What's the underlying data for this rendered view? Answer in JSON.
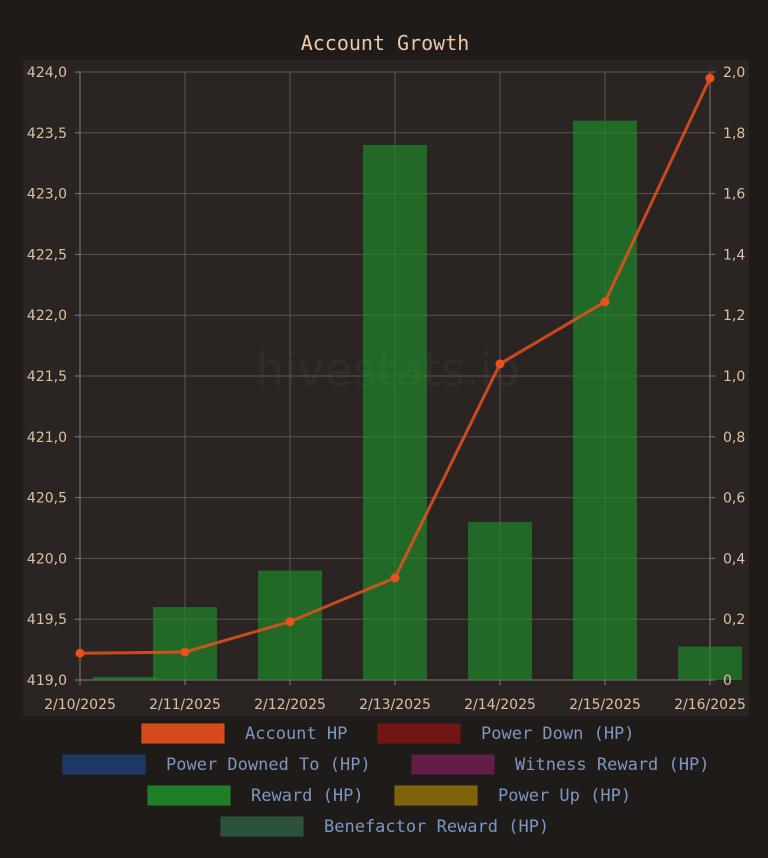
{
  "chart_data": {
    "type": "bar+line",
    "title": "Account Growth",
    "watermark": "hivestats.io",
    "categories": [
      "2/10/2025",
      "2/11/2025",
      "2/12/2025",
      "2/13/2025",
      "2/14/2025",
      "2/15/2025",
      "2/16/2025"
    ],
    "y_left": {
      "min": 419.0,
      "max": 424.0,
      "ticks": [
        "419,0",
        "419,5",
        "420,0",
        "420,5",
        "421,0",
        "421,5",
        "422,0",
        "422,5",
        "423,0",
        "423,5",
        "424,0"
      ]
    },
    "y_right": {
      "min": 0,
      "max": 2.0,
      "ticks": [
        "0",
        "0,2",
        "0,4",
        "0,6",
        "0,8",
        "1,0",
        "1,2",
        "1,4",
        "1,6",
        "1,8",
        "2,0"
      ]
    },
    "grid": true,
    "series": [
      {
        "name": "Account HP",
        "type": "line",
        "axis": "left",
        "color": "#e8501e",
        "values": [
          419.22,
          419.23,
          419.48,
          419.84,
          421.6,
          422.11,
          423.95
        ]
      },
      {
        "name": "Power Down (HP)",
        "type": "bar",
        "axis": "right",
        "color": "#7a1515",
        "values": [
          0,
          0,
          0,
          0,
          0,
          0,
          0
        ]
      },
      {
        "name": "Power Downed To (HP)",
        "type": "bar",
        "axis": "right",
        "color": "#1e3c6e",
        "values": [
          0,
          0,
          0,
          0,
          0,
          0,
          0
        ]
      },
      {
        "name": "Witness Reward (HP)",
        "type": "bar",
        "axis": "right",
        "color": "#6a1e4e",
        "values": [
          0,
          0,
          0,
          0,
          0,
          0,
          0
        ]
      },
      {
        "name": "Reward (HP)",
        "type": "bar",
        "axis": "right",
        "color": "#1f8a2a",
        "values": [
          0.01,
          0.24,
          0.36,
          1.76,
          0.52,
          1.84,
          0.11
        ]
      },
      {
        "name": "Power Up (HP)",
        "type": "bar",
        "axis": "right",
        "color": "#8a6a0a",
        "values": [
          0,
          0,
          0,
          0,
          0,
          0,
          0
        ]
      },
      {
        "name": "Benefactor Reward (HP)",
        "type": "bar",
        "axis": "right",
        "color": "#2e5a3e",
        "values": [
          0,
          0,
          0,
          0,
          0,
          0,
          0
        ]
      }
    ],
    "legend": {
      "position": "bottom",
      "rows": [
        [
          "Account HP",
          "Power Down (HP)"
        ],
        [
          "Power Downed To (HP)",
          "Witness Reward (HP)"
        ],
        [
          "Reward (HP)",
          "Power Up (HP)"
        ],
        [
          "Benefactor Reward (HP)"
        ]
      ]
    }
  }
}
